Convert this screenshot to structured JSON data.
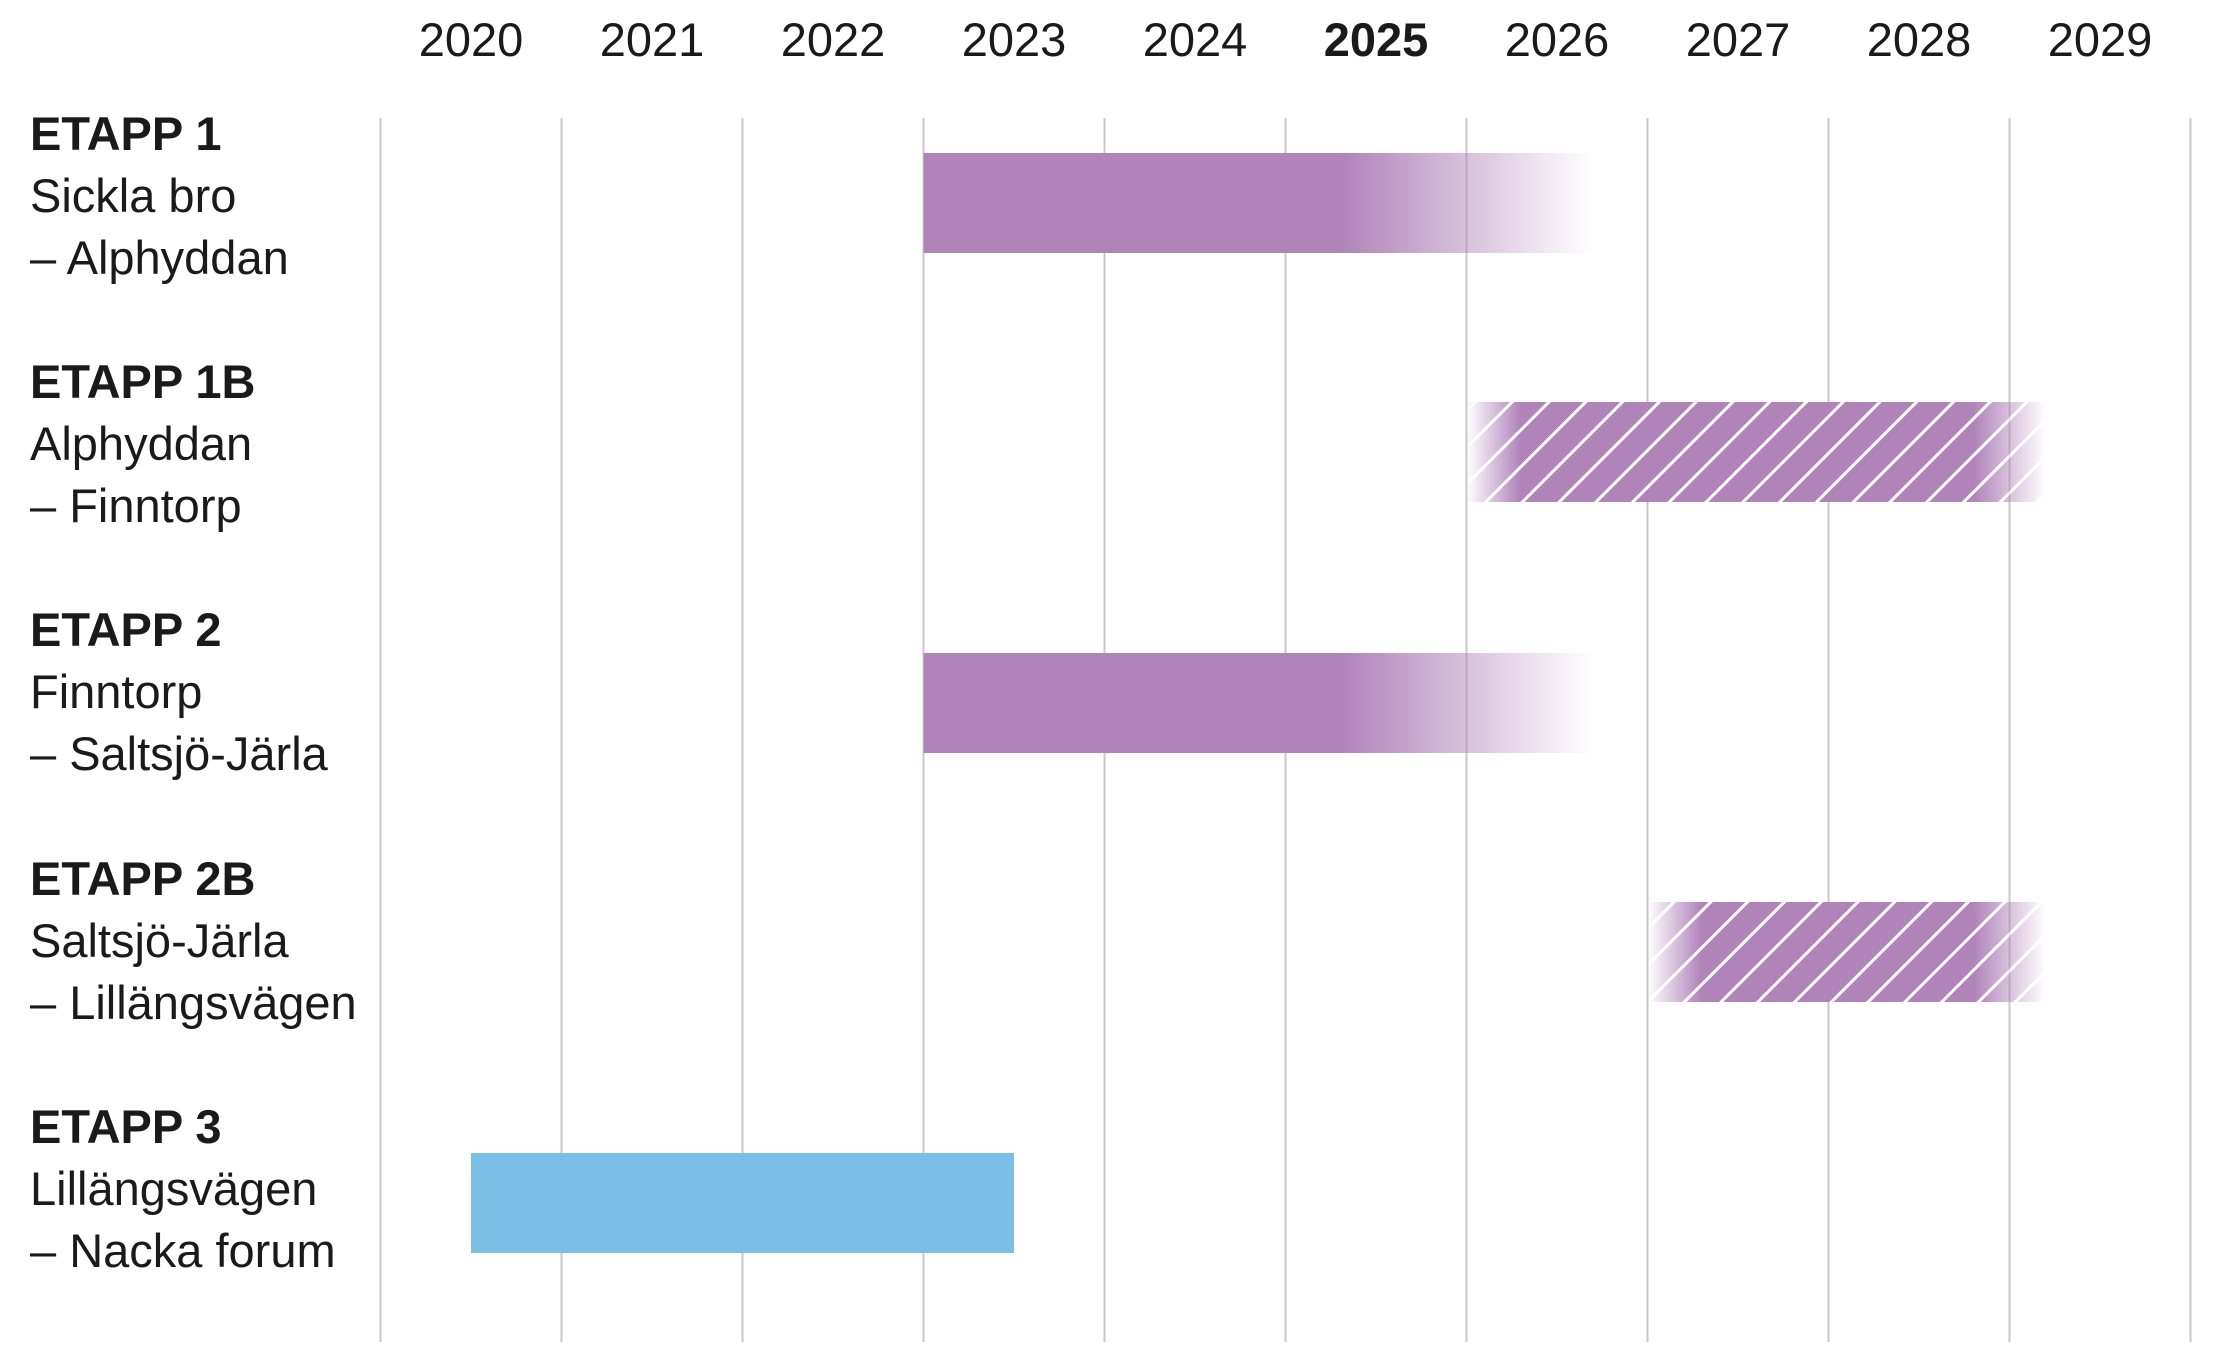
{
  "chart_data": {
    "type": "gantt",
    "years": [
      "2020",
      "2021",
      "2022",
      "2023",
      "2024",
      "2025",
      "2026",
      "2027",
      "2028",
      "2029"
    ],
    "highlight_year": "2025",
    "colors": {
      "purple": "#b083b9",
      "blue": "#7bbfe6",
      "grid": "#c8c8c8",
      "text": "#1a1a1a"
    },
    "stages": [
      {
        "title": "ETAPP 1",
        "line1": "Sickla bro",
        "line2": "– Alphyddan",
        "start": 2022.5,
        "solid_end": 2024.8,
        "end": 2026.2,
        "style": "solid-fade-end",
        "color": "purple"
      },
      {
        "title": "ETAPP 1B",
        "line1": "Alphyddan",
        "line2": "– Finntorp",
        "start": 2025.5,
        "solid_start": 2025.8,
        "solid_end": 2028.3,
        "end": 2028.7,
        "style": "hatched-fade-both",
        "color": "purple"
      },
      {
        "title": "ETAPP 2",
        "line1": "Finntorp",
        "line2": "– Saltsjö-Järla",
        "start": 2022.5,
        "solid_end": 2024.8,
        "end": 2026.2,
        "style": "solid-fade-end",
        "color": "purple"
      },
      {
        "title": "ETAPP 2B",
        "line1": "Saltsjö-Järla",
        "line2": "– Lillängsvägen",
        "start": 2026.5,
        "solid_start": 2026.8,
        "solid_end": 2028.3,
        "end": 2028.7,
        "style": "hatched-fade-both",
        "color": "purple"
      },
      {
        "title": "ETAPP 3",
        "line1": "Lillängsvägen",
        "line2": "– Nacka forum",
        "start": 2020.0,
        "solid_end": 2023.0,
        "end": 2023.0,
        "style": "solid",
        "color": "blue"
      }
    ]
  }
}
